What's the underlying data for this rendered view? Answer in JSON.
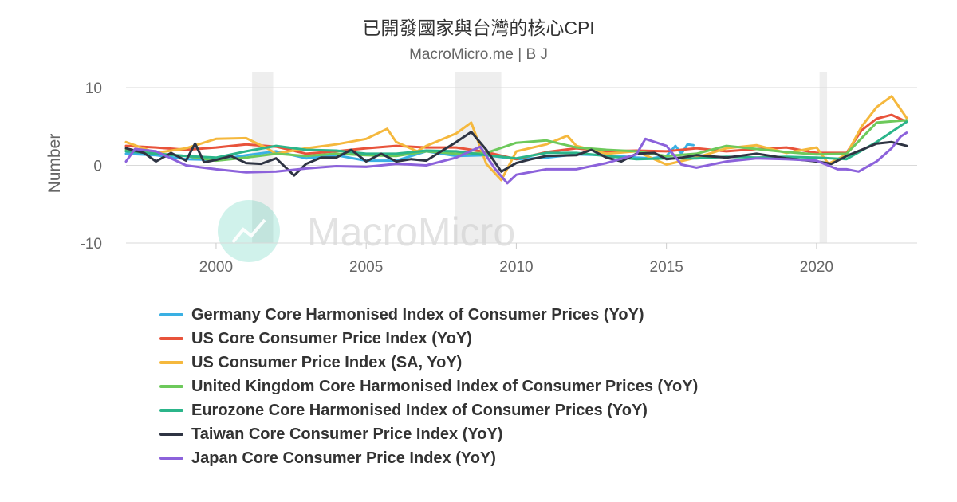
{
  "chart_data": {
    "type": "line",
    "title": "已開發國家與台灣的核心CPI",
    "subtitle": "MacroMicro.me | B J",
    "ylabel": "Number",
    "xlabel": "",
    "xlim": [
      1997.0,
      2023.35
    ],
    "ylim": [
      -10,
      10
    ],
    "x_ticks": [
      2000,
      2005,
      2010,
      2015,
      2020
    ],
    "y_ticks": [
      10,
      0,
      -10
    ],
    "grid": "horizontal",
    "legend_position": "bottom",
    "watermark": "MacroMicro",
    "recession_shading": [
      [
        2001.2,
        2001.9
      ],
      [
        2007.95,
        2009.5
      ],
      [
        2020.1,
        2020.35
      ]
    ],
    "series": [
      {
        "name": "Germany Core Harmonised Index of Consumer Prices (YoY)",
        "color": "#3ab0e3",
        "points": [
          [
            1997.0,
            1.5
          ],
          [
            1998.0,
            1.3
          ],
          [
            1999.0,
            0.8
          ],
          [
            2000.0,
            0.7
          ],
          [
            2001.0,
            1.3
          ],
          [
            2002.0,
            1.8
          ],
          [
            2003.0,
            0.9
          ],
          [
            2004.0,
            1.3
          ],
          [
            2005.0,
            0.6
          ],
          [
            2006.0,
            0.6
          ],
          [
            2007.0,
            1.8
          ],
          [
            2008.0,
            1.2
          ],
          [
            2009.0,
            1.3
          ],
          [
            2010.0,
            0.8
          ],
          [
            2011.0,
            1.0
          ],
          [
            2012.0,
            1.4
          ],
          [
            2013.0,
            1.3
          ],
          [
            2014.0,
            1.0
          ],
          [
            2014.5,
            0.9
          ],
          [
            2015.0,
            1.2
          ],
          [
            2015.3,
            2.5
          ],
          [
            2015.5,
            1.5
          ],
          [
            2015.7,
            2.7
          ],
          [
            2015.9,
            2.6
          ]
        ]
      },
      {
        "name": "US Core Consumer Price Index (YoY)",
        "color": "#e8533b",
        "points": [
          [
            1997.0,
            2.5
          ],
          [
            1998.0,
            2.3
          ],
          [
            1999.0,
            2.0
          ],
          [
            2000.0,
            2.3
          ],
          [
            2001.0,
            2.7
          ],
          [
            2002.0,
            2.4
          ],
          [
            2003.0,
            1.5
          ],
          [
            2004.0,
            1.8
          ],
          [
            2005.0,
            2.2
          ],
          [
            2006.0,
            2.5
          ],
          [
            2007.0,
            2.3
          ],
          [
            2008.0,
            2.3
          ],
          [
            2009.0,
            1.7
          ],
          [
            2010.0,
            0.8
          ],
          [
            2011.0,
            1.7
          ],
          [
            2012.0,
            2.2
          ],
          [
            2013.0,
            1.8
          ],
          [
            2014.0,
            1.9
          ],
          [
            2015.0,
            1.8
          ],
          [
            2016.0,
            2.2
          ],
          [
            2017.0,
            1.8
          ],
          [
            2018.0,
            2.1
          ],
          [
            2019.0,
            2.3
          ],
          [
            2020.0,
            1.6
          ],
          [
            2021.0,
            1.6
          ],
          [
            2021.5,
            4.5
          ],
          [
            2022.0,
            6.0
          ],
          [
            2022.5,
            6.5
          ],
          [
            2023.0,
            5.6
          ]
        ]
      },
      {
        "name": "US Consumer Price Index (SA, YoY)",
        "color": "#f5b83d",
        "points": [
          [
            1997.0,
            3.0
          ],
          [
            1998.0,
            1.6
          ],
          [
            1999.0,
            2.2
          ],
          [
            2000.0,
            3.4
          ],
          [
            2001.0,
            3.5
          ],
          [
            2001.7,
            2.2
          ],
          [
            2002.0,
            1.5
          ],
          [
            2003.0,
            2.2
          ],
          [
            2004.0,
            2.7
          ],
          [
            2005.0,
            3.4
          ],
          [
            2005.7,
            4.7
          ],
          [
            2006.0,
            3.0
          ],
          [
            2006.7,
            1.8
          ],
          [
            2007.0,
            2.5
          ],
          [
            2008.0,
            4.1
          ],
          [
            2008.5,
            5.5
          ],
          [
            2009.0,
            0.2
          ],
          [
            2009.5,
            -1.9
          ],
          [
            2010.0,
            1.8
          ],
          [
            2011.0,
            2.7
          ],
          [
            2011.7,
            3.8
          ],
          [
            2012.0,
            2.5
          ],
          [
            2013.0,
            1.5
          ],
          [
            2014.0,
            1.8
          ],
          [
            2015.0,
            0.1
          ],
          [
            2016.0,
            1.0
          ],
          [
            2017.0,
            2.2
          ],
          [
            2018.0,
            2.6
          ],
          [
            2019.0,
            1.6
          ],
          [
            2020.0,
            2.3
          ],
          [
            2020.4,
            0.2
          ],
          [
            2021.0,
            1.4
          ],
          [
            2021.5,
            5.0
          ],
          [
            2022.0,
            7.5
          ],
          [
            2022.5,
            8.9
          ],
          [
            2023.0,
            6.1
          ]
        ]
      },
      {
        "name": "United Kingdom Core Harmonised Index of Consumer Prices (YoY)",
        "color": "#6dc95b",
        "points": [
          [
            1997.0,
            2.0
          ],
          [
            1998.0,
            1.5
          ],
          [
            1999.0,
            1.2
          ],
          [
            2000.0,
            0.6
          ],
          [
            2001.0,
            1.0
          ],
          [
            2002.0,
            1.5
          ],
          [
            2003.0,
            1.2
          ],
          [
            2004.0,
            1.5
          ],
          [
            2005.0,
            1.3
          ],
          [
            2006.0,
            1.2
          ],
          [
            2007.0,
            1.8
          ],
          [
            2008.0,
            1.5
          ],
          [
            2009.0,
            1.6
          ],
          [
            2010.0,
            2.9
          ],
          [
            2011.0,
            3.2
          ],
          [
            2012.0,
            2.3
          ],
          [
            2013.0,
            2.0
          ],
          [
            2014.0,
            1.8
          ],
          [
            2015.0,
            1.2
          ],
          [
            2016.0,
            1.5
          ],
          [
            2017.0,
            2.5
          ],
          [
            2018.0,
            2.1
          ],
          [
            2019.0,
            1.7
          ],
          [
            2020.0,
            1.4
          ],
          [
            2021.0,
            1.5
          ],
          [
            2022.0,
            5.5
          ],
          [
            2023.0,
            5.8
          ]
        ]
      },
      {
        "name": "Eurozone Core Harmonised Index of Consumer Prices (YoY)",
        "color": "#2bb58a",
        "points": [
          [
            1997.0,
            1.8
          ],
          [
            1998.0,
            1.5
          ],
          [
            1999.0,
            1.2
          ],
          [
            2000.0,
            1.0
          ],
          [
            2001.0,
            1.8
          ],
          [
            2002.0,
            2.5
          ],
          [
            2003.0,
            2.0
          ],
          [
            2004.0,
            1.9
          ],
          [
            2005.0,
            1.5
          ],
          [
            2006.0,
            1.5
          ],
          [
            2007.0,
            1.9
          ],
          [
            2008.0,
            1.8
          ],
          [
            2009.0,
            1.3
          ],
          [
            2010.0,
            0.9
          ],
          [
            2011.0,
            1.6
          ],
          [
            2012.0,
            1.6
          ],
          [
            2013.0,
            1.2
          ],
          [
            2014.0,
            0.8
          ],
          [
            2015.0,
            0.9
          ],
          [
            2016.0,
            0.9
          ],
          [
            2017.0,
            1.1
          ],
          [
            2018.0,
            1.0
          ],
          [
            2019.0,
            1.1
          ],
          [
            2020.0,
            1.0
          ],
          [
            2021.0,
            0.8
          ],
          [
            2022.0,
            3.0
          ],
          [
            2023.0,
            5.6
          ]
        ]
      },
      {
        "name": "Taiwan Core Consumer Price Index (YoY)",
        "color": "#2e3443",
        "points": [
          [
            1997.0,
            2.2
          ],
          [
            1997.6,
            1.6
          ],
          [
            1998.0,
            0.5
          ],
          [
            1998.5,
            1.6
          ],
          [
            1999.0,
            0.6
          ],
          [
            1999.3,
            2.8
          ],
          [
            1999.6,
            0.4
          ],
          [
            2000.0,
            0.7
          ],
          [
            2000.5,
            1.2
          ],
          [
            2001.0,
            0.3
          ],
          [
            2001.5,
            0.2
          ],
          [
            2002.0,
            0.9
          ],
          [
            2002.6,
            -1.3
          ],
          [
            2003.0,
            0.2
          ],
          [
            2003.5,
            1.0
          ],
          [
            2004.0,
            1.0
          ],
          [
            2004.5,
            2.0
          ],
          [
            2005.0,
            0.5
          ],
          [
            2005.5,
            1.5
          ],
          [
            2006.0,
            0.5
          ],
          [
            2006.5,
            0.8
          ],
          [
            2007.0,
            0.6
          ],
          [
            2007.5,
            1.8
          ],
          [
            2008.0,
            3.0
          ],
          [
            2008.5,
            4.3
          ],
          [
            2009.0,
            2.0
          ],
          [
            2009.5,
            -0.8
          ],
          [
            2010.0,
            0.3
          ],
          [
            2010.5,
            0.8
          ],
          [
            2011.0,
            1.2
          ],
          [
            2012.0,
            1.3
          ],
          [
            2012.5,
            2.0
          ],
          [
            2013.0,
            1.0
          ],
          [
            2013.5,
            0.5
          ],
          [
            2014.0,
            1.5
          ],
          [
            2014.6,
            1.6
          ],
          [
            2015.0,
            0.8
          ],
          [
            2015.5,
            1.0
          ],
          [
            2016.0,
            1.3
          ],
          [
            2017.0,
            1.0
          ],
          [
            2018.0,
            1.5
          ],
          [
            2019.0,
            0.9
          ],
          [
            2020.0,
            0.5
          ],
          [
            2020.5,
            0.2
          ],
          [
            2021.0,
            1.2
          ],
          [
            2021.5,
            2.0
          ],
          [
            2022.0,
            2.8
          ],
          [
            2022.5,
            3.0
          ],
          [
            2023.0,
            2.5
          ]
        ]
      },
      {
        "name": "Japan Core Consumer Price Index (YoY)",
        "color": "#8c62db",
        "points": [
          [
            1997.0,
            0.5
          ],
          [
            1997.3,
            2.1
          ],
          [
            1998.0,
            1.8
          ],
          [
            1999.0,
            0.0
          ],
          [
            2000.0,
            -0.5
          ],
          [
            2001.0,
            -0.9
          ],
          [
            2002.0,
            -0.8
          ],
          [
            2003.0,
            -0.4
          ],
          [
            2004.0,
            -0.1
          ],
          [
            2005.0,
            -0.2
          ],
          [
            2006.0,
            0.2
          ],
          [
            2007.0,
            0.0
          ],
          [
            2008.0,
            1.0
          ],
          [
            2008.8,
            2.4
          ],
          [
            2009.3,
            -0.5
          ],
          [
            2009.7,
            -2.3
          ],
          [
            2010.0,
            -1.2
          ],
          [
            2011.0,
            -0.5
          ],
          [
            2012.0,
            -0.5
          ],
          [
            2013.0,
            0.3
          ],
          [
            2013.8,
            1.2
          ],
          [
            2014.0,
            1.4
          ],
          [
            2014.3,
            3.4
          ],
          [
            2015.0,
            2.5
          ],
          [
            2015.5,
            0.1
          ],
          [
            2016.0,
            -0.3
          ],
          [
            2017.0,
            0.5
          ],
          [
            2018.0,
            0.9
          ],
          [
            2019.0,
            0.8
          ],
          [
            2020.0,
            0.6
          ],
          [
            2020.7,
            -0.5
          ],
          [
            2021.0,
            -0.5
          ],
          [
            2021.4,
            -0.8
          ],
          [
            2022.0,
            0.5
          ],
          [
            2022.5,
            2.2
          ],
          [
            2022.8,
            3.7
          ],
          [
            2023.0,
            4.2
          ]
        ]
      }
    ]
  }
}
